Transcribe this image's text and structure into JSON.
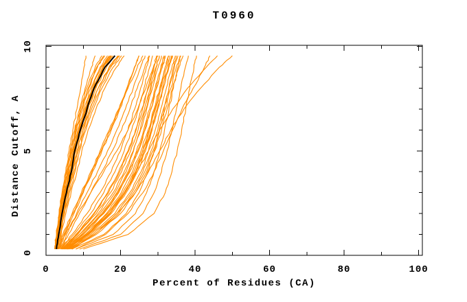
{
  "chart_data": {
    "type": "line",
    "title": "T0960",
    "xlabel": "Percent of Residues (CA)",
    "ylabel": "Distance Cutoff, A",
    "xlim": [
      0,
      101
    ],
    "ylim": [
      0,
      10.05
    ],
    "grid": false,
    "legend": "none",
    "x_tick_labels": [
      "0",
      "20",
      "40",
      "60",
      "80",
      "100"
    ],
    "x_major_ticks": [
      0,
      20,
      40,
      60,
      80,
      100
    ],
    "x_minor_ticks": [
      10,
      30,
      50,
      70,
      90
    ],
    "y_tick_labels": [
      "0",
      "5",
      "10"
    ],
    "y_major_ticks": [
      0,
      5,
      10
    ],
    "y_minor_ticks": [
      1,
      2,
      3,
      4,
      6,
      7,
      8,
      9
    ],
    "colors": {
      "model": "#ff8c00",
      "reference": "#000000",
      "axis": "#000000"
    },
    "cutoff_samples": [
      0.3,
      1,
      2,
      3,
      4,
      5,
      6,
      7,
      8,
      9,
      9.55
    ],
    "series": [
      {
        "id": "curve-01",
        "role": "model",
        "xs": [
          2.5,
          3.0,
          3.8,
          4.8,
          6.0,
          7.0,
          8.2,
          9.8,
          11.5,
          13.8,
          15.5
        ]
      },
      {
        "id": "curve-02",
        "role": "model",
        "xs": [
          2.6,
          3.2,
          4.0,
          5.0,
          6.3,
          7.4,
          8.8,
          10.4,
          12.3,
          14.8,
          17.0
        ]
      },
      {
        "id": "curve-03",
        "role": "model",
        "xs": [
          3.0,
          3.6,
          4.6,
          5.8,
          7.2,
          8.3,
          9.9,
          11.8,
          14.0,
          17.0,
          19.5
        ]
      },
      {
        "id": "curve-04",
        "role": "model",
        "xs": [
          2.4,
          2.9,
          3.6,
          4.5,
          5.6,
          6.6,
          7.8,
          9.2,
          10.9,
          13.2,
          15.0
        ]
      },
      {
        "id": "curve-05",
        "role": "model",
        "xs": [
          3.2,
          3.9,
          5.0,
          6.3,
          7.8,
          9.0,
          10.7,
          12.7,
          15.0,
          18.0,
          20.3
        ]
      },
      {
        "id": "curve-06",
        "role": "model",
        "xs": [
          2.7,
          3.3,
          4.2,
          5.3,
          6.6,
          7.7,
          9.1,
          10.8,
          12.8,
          15.4,
          17.6
        ]
      },
      {
        "id": "curve-07",
        "role": "model",
        "xs": [
          2.5,
          3.1,
          4.0,
          5.1,
          6.4,
          7.5,
          8.9,
          10.6,
          12.6,
          15.2,
          17.3
        ]
      },
      {
        "id": "curve-08",
        "role": "model",
        "xs": [
          2.9,
          3.5,
          4.4,
          5.5,
          6.9,
          8.0,
          9.5,
          11.3,
          13.4,
          16.2,
          18.4
        ]
      },
      {
        "id": "curve-09",
        "role": "model",
        "xs": [
          2.6,
          3.1,
          3.9,
          4.9,
          6.1,
          7.2,
          8.5,
          10.1,
          12.0,
          14.5,
          16.5
        ]
      },
      {
        "id": "curve-10",
        "role": "model",
        "xs": [
          3.1,
          3.8,
          4.8,
          6.0,
          7.5,
          8.7,
          10.3,
          12.2,
          14.5,
          17.4,
          19.8
        ]
      },
      {
        "id": "curve-11",
        "role": "model",
        "xs": [
          2.8,
          3.4,
          4.3,
          5.4,
          6.7,
          7.9,
          9.3,
          11.1,
          13.1,
          15.8,
          18.0
        ]
      },
      {
        "id": "curve-12",
        "role": "model",
        "xs": [
          2.5,
          3.0,
          3.7,
          4.6,
          5.8,
          6.8,
          8.0,
          9.5,
          11.3,
          13.6,
          15.8
        ]
      },
      {
        "id": "curve-13",
        "role": "model",
        "xs": [
          3.3,
          4.1,
          5.3,
          6.7,
          8.3,
          9.6,
          11.3,
          13.4,
          15.8,
          18.9,
          21.0
        ]
      },
      {
        "id": "curve-14",
        "role": "model",
        "xs": [
          2.7,
          3.2,
          4.1,
          5.2,
          6.5,
          7.6,
          9.0,
          10.7,
          12.7,
          15.3,
          17.4
        ]
      },
      {
        "id": "curve-15",
        "role": "model",
        "xs": [
          2.9,
          3.6,
          4.6,
          5.8,
          7.2,
          8.4,
          9.9,
          11.8,
          14.0,
          16.9,
          19.2
        ]
      },
      {
        "id": "curve-16",
        "role": "model",
        "xs": [
          2.6,
          3.2,
          4.1,
          5.2,
          6.5,
          7.6,
          9.0,
          10.7,
          12.7,
          15.3,
          17.5
        ]
      },
      {
        "id": "curve-17",
        "role": "model",
        "xs": [
          2.3,
          2.8,
          3.5,
          4.3,
          5.3,
          6.2,
          7.2,
          8.3,
          9.3,
          10.2,
          10.7
        ]
      },
      {
        "id": "curve-18",
        "role": "model",
        "xs": [
          2.4,
          2.9,
          3.6,
          4.5,
          5.5,
          6.5,
          7.7,
          9.0,
          10.5,
          12.2,
          13.2
        ]
      },
      {
        "id": "curve-19",
        "role": "model",
        "xs": [
          3.5,
          5.0,
          7.5,
          10.0,
          12.5,
          15.0,
          17.5,
          19.8,
          21.8,
          23.8,
          25.0
        ]
      },
      {
        "id": "curve-20",
        "role": "model",
        "xs": [
          3.0,
          4.5,
          7.0,
          9.5,
          12.0,
          14.5,
          17.0,
          19.5,
          22.0,
          24.5,
          26.0
        ]
      },
      {
        "id": "curve-21",
        "role": "model",
        "xs": [
          4.0,
          6.0,
          9.0,
          12.0,
          15.0,
          17.8,
          20.3,
          22.5,
          24.5,
          26.5,
          27.7
        ]
      },
      {
        "id": "curve-22",
        "role": "model",
        "xs": [
          3.2,
          4.8,
          7.2,
          9.8,
          12.3,
          14.8,
          17.3,
          19.6,
          21.7,
          23.7,
          24.9
        ]
      },
      {
        "id": "curve-23",
        "role": "model",
        "xs": [
          3.8,
          5.5,
          8.2,
          11.0,
          13.8,
          16.5,
          19.0,
          21.3,
          23.4,
          25.4,
          26.6
        ]
      },
      {
        "id": "curve-24",
        "role": "model",
        "xs": [
          3.4,
          5.2,
          8.5,
          12.0,
          15.5,
          19.0,
          22.0,
          24.6,
          26.8,
          28.8,
          30.0
        ]
      },
      {
        "id": "curve-25",
        "role": "model",
        "xs": [
          4.5,
          9.0,
          14.5,
          18.5,
          21.5,
          23.5,
          25.3,
          26.8,
          28.2,
          29.6,
          30.4
        ]
      },
      {
        "id": "curve-26",
        "role": "model",
        "xs": [
          5.5,
          11.0,
          17.0,
          21.0,
          24.0,
          26.0,
          27.7,
          29.2,
          30.6,
          32.0,
          33.0
        ]
      },
      {
        "id": "curve-27",
        "role": "model",
        "xs": [
          4.0,
          7.5,
          12.0,
          15.5,
          18.5,
          21.0,
          23.0,
          24.8,
          26.3,
          27.8,
          28.6
        ]
      },
      {
        "id": "curve-28",
        "role": "model",
        "xs": [
          6.0,
          12.0,
          18.5,
          22.5,
          25.5,
          27.5,
          29.3,
          30.8,
          32.3,
          33.8,
          34.7
        ]
      },
      {
        "id": "curve-29",
        "role": "model",
        "xs": [
          5.0,
          10.0,
          15.5,
          19.5,
          22.5,
          24.8,
          26.6,
          28.2,
          29.7,
          31.2,
          32.0
        ]
      },
      {
        "id": "curve-30",
        "role": "model",
        "xs": [
          4.2,
          8.0,
          12.8,
          16.5,
          19.5,
          22.0,
          24.0,
          25.7,
          27.3,
          28.8,
          29.7
        ]
      },
      {
        "id": "curve-31",
        "role": "model",
        "xs": [
          5.8,
          11.5,
          17.5,
          21.5,
          24.5,
          26.7,
          28.5,
          30.0,
          31.5,
          33.0,
          34.0
        ]
      },
      {
        "id": "curve-32",
        "role": "model",
        "xs": [
          4.8,
          9.5,
          15.0,
          19.0,
          22.0,
          24.3,
          26.2,
          27.8,
          29.3,
          30.8,
          31.7
        ]
      },
      {
        "id": "curve-33",
        "role": "model",
        "xs": [
          6.5,
          13.0,
          19.5,
          23.5,
          26.5,
          28.7,
          30.5,
          32.0,
          33.5,
          35.0,
          36.0
        ]
      },
      {
        "id": "curve-34",
        "role": "model",
        "xs": [
          4.4,
          8.5,
          13.5,
          17.3,
          20.3,
          22.7,
          24.7,
          26.4,
          28.0,
          29.5,
          30.4
        ]
      },
      {
        "id": "curve-35",
        "role": "model",
        "xs": [
          5.2,
          10.5,
          16.2,
          20.2,
          23.2,
          25.5,
          27.4,
          29.0,
          30.5,
          32.0,
          32.9
        ]
      },
      {
        "id": "curve-36",
        "role": "model",
        "xs": [
          4.6,
          9.0,
          14.0,
          18.0,
          21.0,
          23.4,
          25.4,
          27.0,
          28.6,
          30.1,
          31.0
        ]
      },
      {
        "id": "curve-37",
        "role": "model",
        "xs": [
          5.5,
          11.2,
          17.2,
          21.2,
          24.1,
          26.3,
          28.2,
          29.8,
          31.3,
          32.8,
          33.7
        ]
      },
      {
        "id": "curve-38",
        "role": "model",
        "xs": [
          4.0,
          7.0,
          11.0,
          14.5,
          17.5,
          20.0,
          22.0,
          23.8,
          25.4,
          26.9,
          27.8
        ]
      },
      {
        "id": "curve-39",
        "role": "model",
        "xs": [
          6.2,
          12.5,
          19.0,
          23.0,
          26.0,
          28.2,
          30.0,
          31.5,
          33.0,
          34.5,
          35.4
        ]
      },
      {
        "id": "curve-40",
        "role": "model",
        "xs": [
          4.9,
          9.8,
          15.3,
          19.3,
          22.3,
          24.6,
          26.5,
          28.1,
          29.6,
          31.1,
          32.0
        ]
      },
      {
        "id": "curve-41",
        "role": "model",
        "xs": [
          5.4,
          10.8,
          16.6,
          20.6,
          23.6,
          25.9,
          27.8,
          29.4,
          30.9,
          32.4,
          33.3
        ]
      },
      {
        "id": "curve-42",
        "role": "model",
        "xs": [
          4.3,
          8.2,
          13.0,
          16.8,
          19.8,
          22.2,
          24.2,
          25.9,
          27.5,
          29.0,
          29.9
        ]
      },
      {
        "id": "curve-43",
        "role": "model",
        "xs": [
          5.7,
          11.3,
          17.2,
          21.2,
          24.2,
          26.4,
          28.3,
          29.9,
          31.4,
          32.9,
          33.8
        ]
      },
      {
        "id": "curve-44",
        "role": "model",
        "xs": [
          6.8,
          13.5,
          20.0,
          24.0,
          27.0,
          29.2,
          31.0,
          32.5,
          34.0,
          35.7,
          36.8
        ]
      },
      {
        "id": "curve-45",
        "role": "model",
        "xs": [
          8.0,
          18.0,
          24.0,
          27.0,
          29.0,
          30.5,
          31.8,
          33.0,
          34.2,
          35.4,
          36.2
        ]
      },
      {
        "id": "curve-46",
        "role": "model",
        "xs": [
          7.0,
          15.5,
          21.5,
          25.0,
          27.3,
          29.0,
          30.4,
          31.7,
          33.0,
          34.2,
          35.0
        ]
      },
      {
        "id": "curve-47",
        "role": "model",
        "xs": [
          9.0,
          20.0,
          26.0,
          29.0,
          31.0,
          32.5,
          33.8,
          35.0,
          36.2,
          37.4,
          38.2
        ]
      },
      {
        "id": "curve-48",
        "role": "model",
        "xs": [
          10.0,
          22.0,
          29.0,
          32.0,
          33.8,
          35.2,
          36.4,
          37.5,
          38.6,
          39.7,
          40.4
        ]
      },
      {
        "id": "curve-49",
        "role": "model",
        "xs": [
          7.0,
          13.0,
          19.0,
          24.0,
          27.5,
          30.5,
          33.5,
          37.0,
          41.5,
          46.5,
          50.0
        ]
      },
      {
        "id": "curve-50",
        "role": "model",
        "xs": [
          6.0,
          11.0,
          16.5,
          21.0,
          24.5,
          27.5,
          30.5,
          34.0,
          38.0,
          43.0,
          46.0
        ]
      },
      {
        "id": "curve-51",
        "role": "model",
        "xs": [
          8.0,
          16.0,
          22.0,
          26.0,
          29.0,
          31.5,
          34.0,
          36.5,
          39.5,
          42.5,
          44.0
        ]
      },
      {
        "id": "curve-reference",
        "role": "reference",
        "xs": [
          2.8,
          3.4,
          4.3,
          5.5,
          6.8,
          7.7,
          9.2,
          11.0,
          12.9,
          15.8,
          18.5
        ]
      }
    ]
  }
}
